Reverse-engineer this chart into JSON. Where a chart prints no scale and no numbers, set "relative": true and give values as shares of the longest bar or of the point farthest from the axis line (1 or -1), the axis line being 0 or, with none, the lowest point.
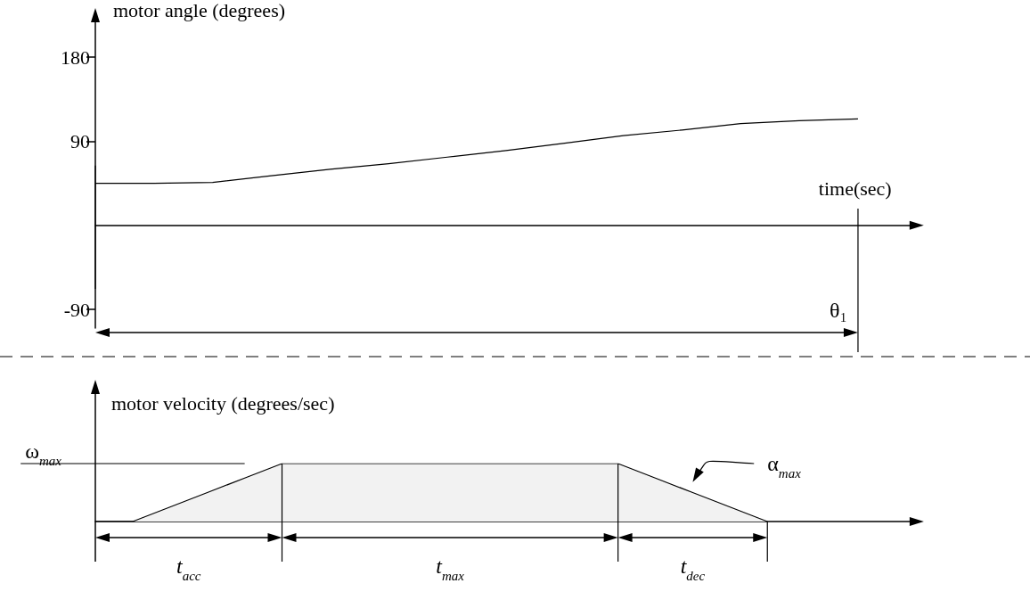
{
  "chart_data": [
    {
      "type": "line",
      "ylabel": "motor angle (degrees)",
      "xlabel": "time(sec)",
      "categories": [
        null,
        null,
        null,
        null,
        null,
        null,
        null,
        null,
        null,
        null,
        null,
        null,
        null,
        null
      ],
      "values": [
        45,
        45,
        46,
        53,
        60,
        66,
        73,
        80,
        88,
        96,
        102,
        109,
        112,
        114
      ],
      "color": "#000000",
      "ylim": [
        -110,
        225
      ],
      "yticks": [
        180,
        90,
        -90
      ],
      "tick_labels": "y",
      "annotations": [
        "θ₁"
      ]
    },
    {
      "type": "area",
      "relative": true,
      "ylabel": "motor velocity (degrees/sec)",
      "categories": [
        null,
        null,
        null,
        null,
        null,
        null,
        null,
        null,
        null,
        null,
        null,
        null,
        null,
        null,
        null,
        null,
        null,
        null,
        null
      ],
      "values": [
        0,
        0,
        0.25,
        0.5,
        0.75,
        1,
        1,
        1,
        1,
        1,
        1,
        1,
        1,
        1,
        1,
        0.75,
        0.5,
        0.25,
        0
      ],
      "color": "#f2f2f2",
      "tick_labels": false,
      "ref_lines": [
        {
          "axis": "y",
          "value": 1,
          "label": "ω$_{max}$"
        }
      ],
      "annotations": [
        "t$_{acc}$",
        "t$_{max}$",
        "t$_{dec}$",
        "α$_{max}$"
      ]
    }
  ]
}
